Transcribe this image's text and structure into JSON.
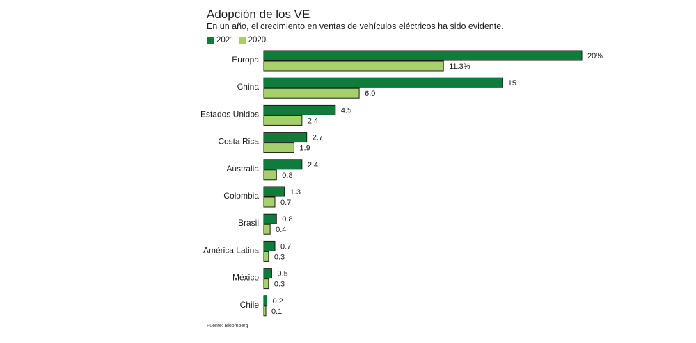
{
  "title": "Adopción de los VE",
  "subtitle": "En un año, el crecimiento en ventas de vehículos eléctricos ha sido evidente.",
  "source": "Fuente: Bloomberg",
  "colors": {
    "s2021": "#0e7c3a",
    "s2020": "#a6d06c",
    "stroke": "#1a1a1a"
  },
  "chart_data": {
    "type": "bar",
    "orientation": "horizontal",
    "title": "Adopción de los VE",
    "legend_position": "top-left",
    "xlim": [
      0,
      20
    ],
    "categories": [
      "Europa",
      "China",
      "Estados Unidos",
      "Costa Rica",
      "Australia",
      "Colombia",
      "Brasil",
      "América Latina",
      "México",
      "Chile"
    ],
    "series": [
      {
        "name": "2021",
        "values": [
          20,
          15,
          4.5,
          2.7,
          2.4,
          1.3,
          0.8,
          0.7,
          0.5,
          0.2
        ],
        "labels": [
          "20%",
          "15",
          "4.5",
          "2.7",
          "2.4",
          "1.3",
          "0.8",
          "0.7",
          "0.5",
          "0.2"
        ]
      },
      {
        "name": "2020",
        "values": [
          11.3,
          6.0,
          2.4,
          1.9,
          0.8,
          0.7,
          0.4,
          0.3,
          0.3,
          0.1
        ],
        "labels": [
          "11.3%",
          "6.0",
          "2.4",
          "1.9",
          "0.8",
          "0.7",
          "0.4",
          "0.3",
          "0.3",
          "0.1"
        ]
      }
    ]
  }
}
